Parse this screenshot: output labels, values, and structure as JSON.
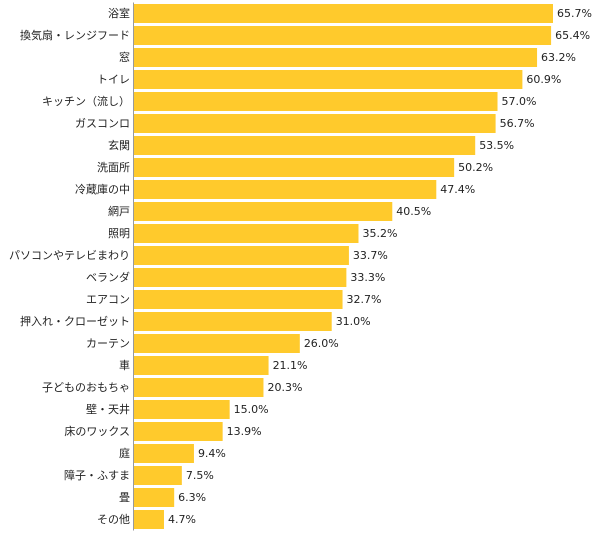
{
  "chart_data": {
    "type": "bar",
    "orientation": "horizontal",
    "categories": [
      "浴室",
      "換気扇・レンジフード",
      "窓",
      "トイレ",
      "キッチン（流し）",
      "ガスコンロ",
      "玄関",
      "洗面所",
      "冷蔵庫の中",
      "網戸",
      "照明",
      "パソコンやテレビまわり",
      "ベランダ",
      "エアコン",
      "押入れ・クローゼット",
      "カーテン",
      "車",
      "子どものおもちゃ",
      "壁・天井",
      "床のワックス",
      "庭",
      "障子・ふすま",
      "畳",
      "その他"
    ],
    "values": [
      65.7,
      65.4,
      63.2,
      60.9,
      57.0,
      56.7,
      53.5,
      50.2,
      47.4,
      40.5,
      35.2,
      33.7,
      33.3,
      32.7,
      31.0,
      26.0,
      21.1,
      20.3,
      15.0,
      13.9,
      9.4,
      7.5,
      6.3,
      4.7
    ],
    "value_labels": [
      "65.7%",
      "65.4%",
      "63.2%",
      "60.9%",
      "57.0%",
      "56.7%",
      "53.5%",
      "50.2%",
      "47.4%",
      "40.5%",
      "35.2%",
      "33.7%",
      "33.3%",
      "32.7%",
      "31.0%",
      "26.0%",
      "21.1%",
      "20.3%",
      "15.0%",
      "13.9%",
      "9.4%",
      "7.5%",
      "6.3%",
      "4.7%"
    ],
    "xlim": [
      0,
      65.7
    ],
    "grid": false,
    "legend": "none",
    "bar_color": "#FFCA2C"
  }
}
